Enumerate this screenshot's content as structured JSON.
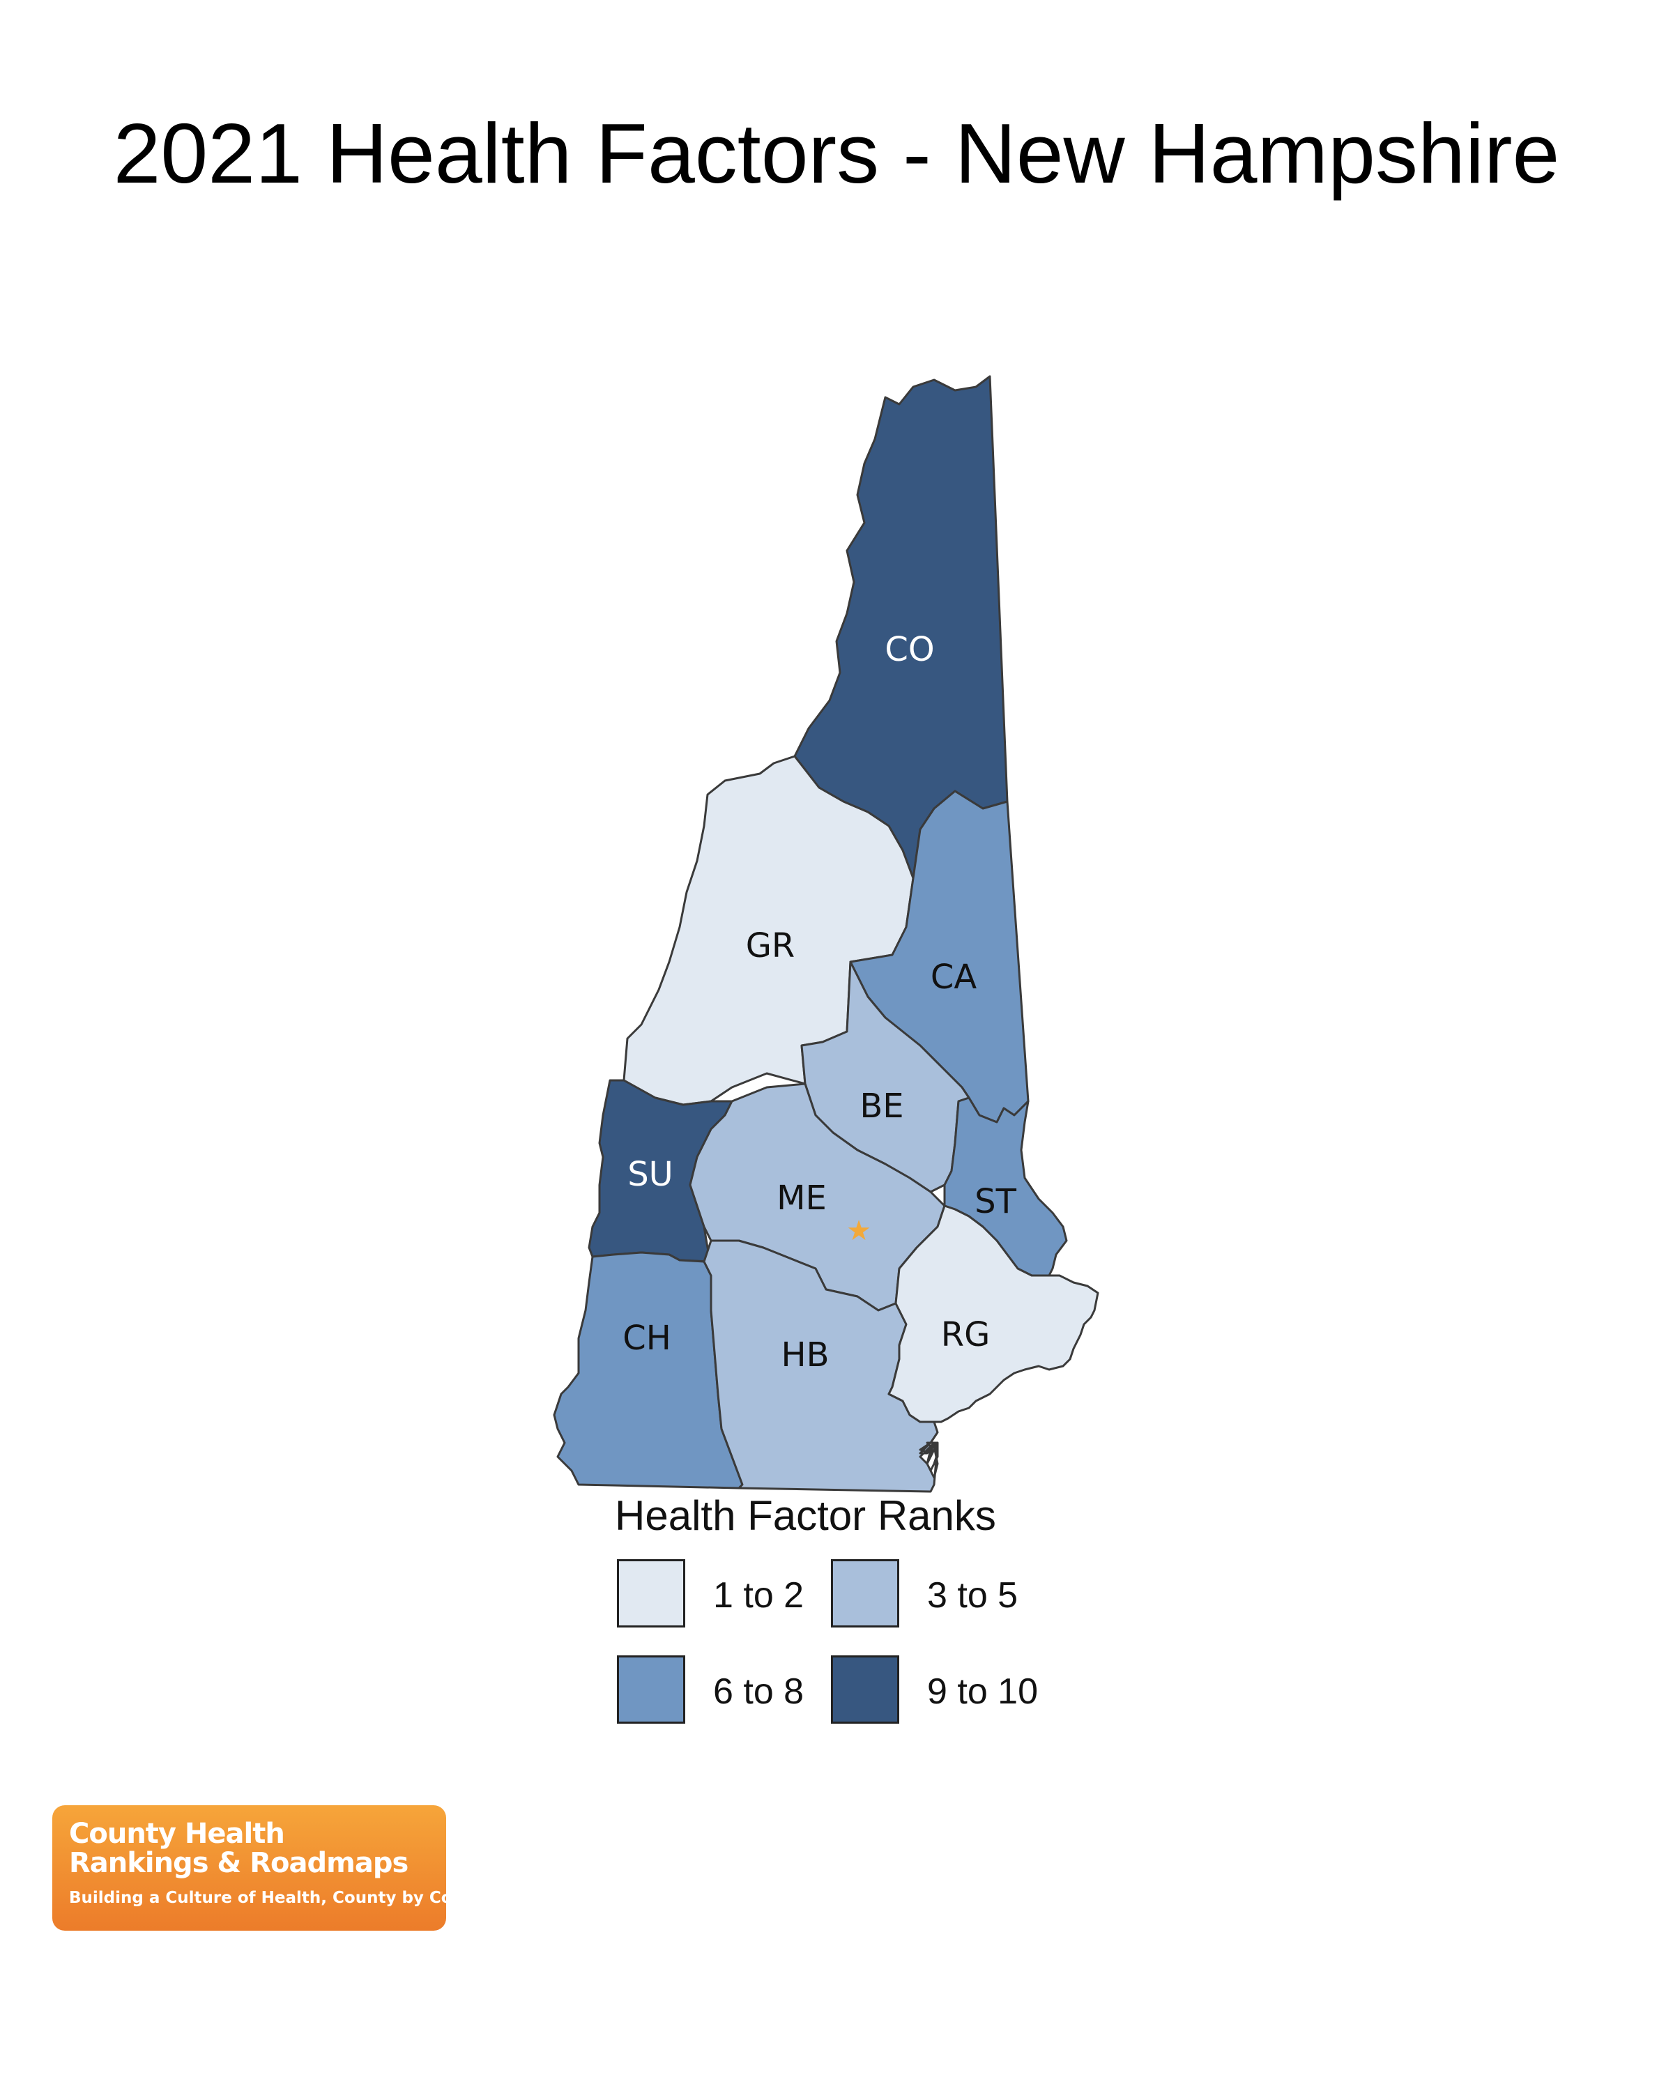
{
  "title": "2021 Health Factors - New Hampshire",
  "map": {
    "counties": [
      {
        "abbr": "CO",
        "rank_category": "9 to 10",
        "fill": "#375780",
        "label_color": "#ffffff"
      },
      {
        "abbr": "GR",
        "rank_category": "1 to 2",
        "fill": "#e1e9f2",
        "label_color": "#111111"
      },
      {
        "abbr": "CA",
        "rank_category": "6 to 8",
        "fill": "#7096c2",
        "label_color": "#111111"
      },
      {
        "abbr": "BE",
        "rank_category": "3 to 5",
        "fill": "#a9bfdb",
        "label_color": "#111111"
      },
      {
        "abbr": "SU",
        "rank_category": "9 to 10",
        "fill": "#375780",
        "label_color": "#ffffff"
      },
      {
        "abbr": "ME",
        "rank_category": "3 to 5",
        "fill": "#a9bfdb",
        "label_color": "#111111"
      },
      {
        "abbr": "ST",
        "rank_category": "6 to 8",
        "fill": "#7096c2",
        "label_color": "#111111"
      },
      {
        "abbr": "CH",
        "rank_category": "6 to 8",
        "fill": "#7096c2",
        "label_color": "#111111"
      },
      {
        "abbr": "HB",
        "rank_category": "3 to 5",
        "fill": "#a9bfdb",
        "label_color": "#111111"
      },
      {
        "abbr": "RG",
        "rank_category": "1 to 2",
        "fill": "#e1e9f2",
        "label_color": "#111111"
      }
    ],
    "capital_marker": {
      "county": "ME",
      "symbol": "★",
      "color": "#f2a93b"
    }
  },
  "legend": {
    "title": "Health Factor Ranks",
    "items": [
      {
        "label": "1 to 2",
        "color": "#e1e9f2"
      },
      {
        "label": "3 to 5",
        "color": "#a9bfdb"
      },
      {
        "label": "6 to 8",
        "color": "#7096c2"
      },
      {
        "label": "9 to 10",
        "color": "#375780"
      }
    ]
  },
  "logo": {
    "line1": "County Health",
    "line2": "Rankings & Roadmaps",
    "tagline": "Building a Culture of Health, County by County"
  }
}
